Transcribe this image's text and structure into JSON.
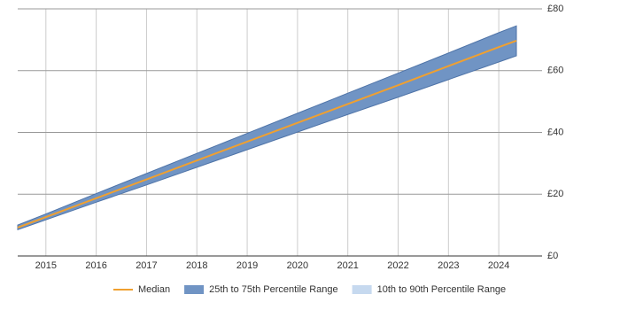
{
  "chart_data": {
    "type": "band-line",
    "x": [
      2014.44,
      2015,
      2016,
      2017,
      2018,
      2019,
      2020,
      2021,
      2022,
      2023,
      2024,
      2024.35
    ],
    "series": [
      {
        "name": "Median",
        "color": "#f0a030",
        "values": [
          9.2,
          12.6,
          18.7,
          24.8,
          30.9,
          37.0,
          43.1,
          49.2,
          55.3,
          61.5,
          67.6,
          69.7
        ]
      },
      {
        "name": "25th to 75th Percentile Range",
        "color": "#7094c4",
        "lower": [
          8.5,
          11.7,
          17.4,
          23.0,
          28.7,
          34.4,
          40.1,
          45.8,
          51.4,
          57.1,
          62.8,
          64.8
        ],
        "upper": [
          10.0,
          13.6,
          20.2,
          26.7,
          33.2,
          39.7,
          46.2,
          52.7,
          59.2,
          65.7,
          72.3,
          74.5
        ]
      },
      {
        "name": "10th to 90th Percentile Range",
        "color": "#c6d9ef"
      }
    ],
    "xlim": [
      2014.44,
      2024.86
    ],
    "xticks": [
      2015,
      2016,
      2017,
      2018,
      2019,
      2020,
      2021,
      2022,
      2023,
      2024
    ],
    "ylim": [
      0,
      80
    ],
    "yticks": [
      {
        "value": 0,
        "label": "£0"
      },
      {
        "value": 20,
        "label": "£20"
      },
      {
        "value": 40,
        "label": "£40"
      },
      {
        "value": 60,
        "label": "£60"
      },
      {
        "value": 80,
        "label": "£80"
      }
    ],
    "grid": true,
    "legend": "bottom"
  }
}
